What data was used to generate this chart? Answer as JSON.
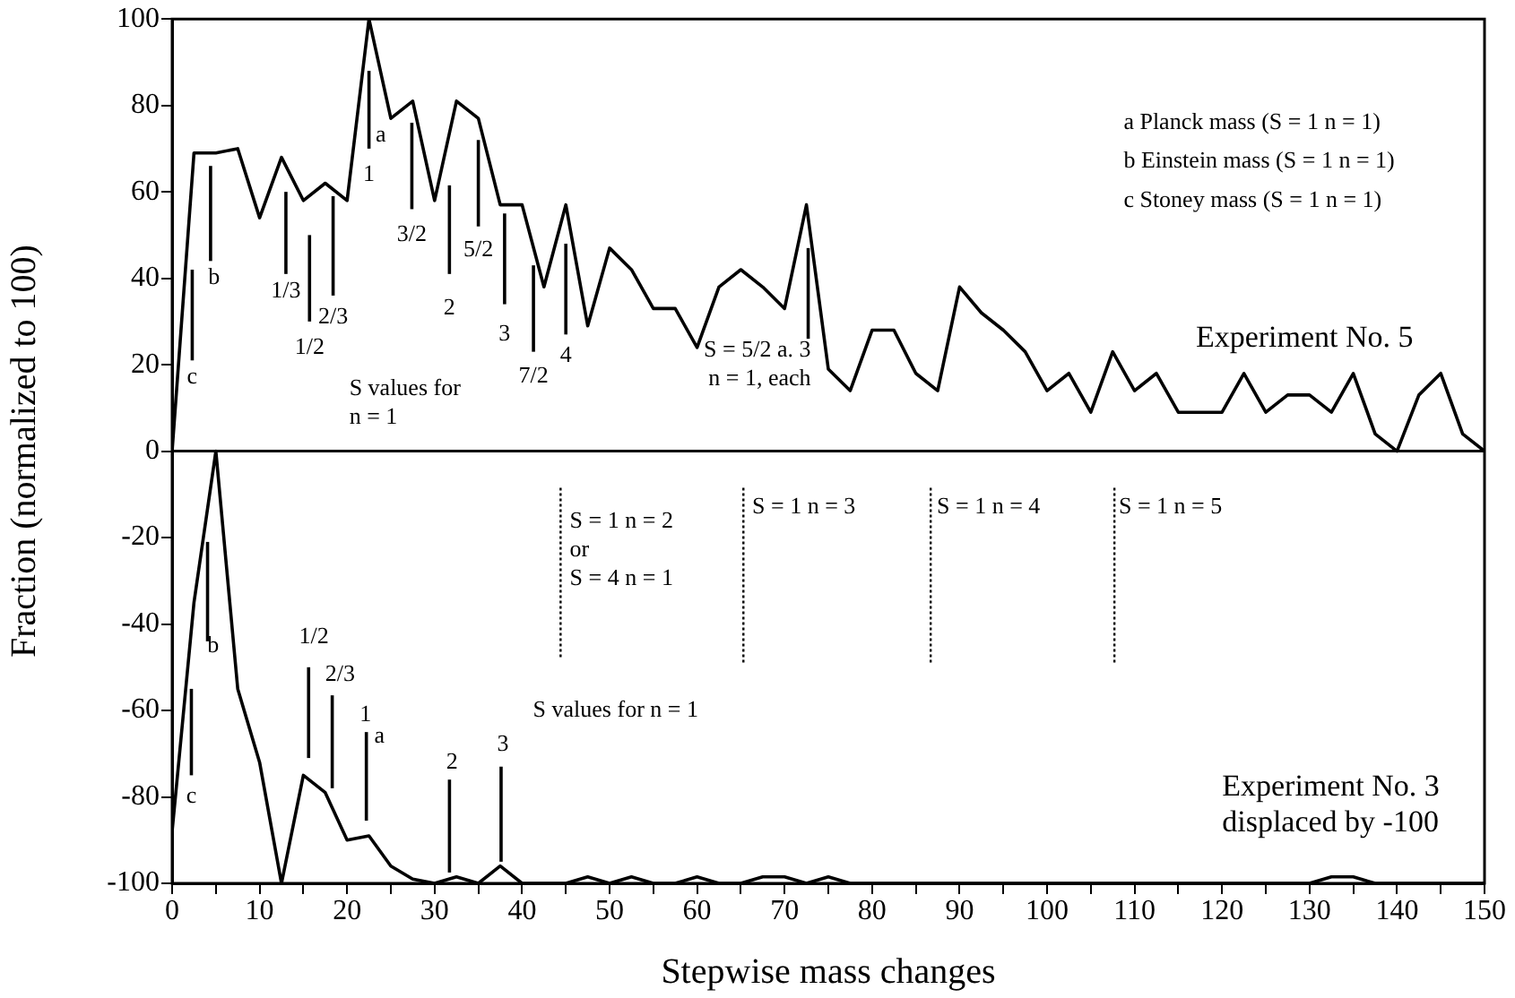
{
  "chart_data": {
    "type": "line",
    "xlabel": "Stepwise mass changes",
    "ylabel": "Fraction (normalized to 100)",
    "xlim": [
      0,
      150
    ],
    "ylim": [
      -100,
      100
    ],
    "xticks": [
      0,
      {
        "value": 5,
        "label": null
      },
      10,
      {
        "value": 15,
        "label": null
      },
      20,
      {
        "value": 25,
        "label": null
      },
      30,
      {
        "value": 35,
        "label": null
      },
      40,
      {
        "value": 45,
        "label": null
      },
      50,
      {
        "value": 55,
        "label": null
      },
      60,
      {
        "value": 65,
        "label": null
      },
      70,
      {
        "value": 75,
        "label": null
      },
      80,
      {
        "value": 85,
        "label": null
      },
      90,
      {
        "value": 95,
        "label": null
      },
      100,
      {
        "value": 105,
        "label": null
      },
      110,
      {
        "value": 115,
        "label": null
      },
      120,
      {
        "value": 125,
        "label": null
      },
      130,
      {
        "value": 135,
        "label": null
      },
      140,
      {
        "value": 145,
        "label": null
      },
      150
    ],
    "yticks": [
      -100,
      -80,
      -60,
      -40,
      -20,
      0,
      20,
      40,
      60,
      80,
      100
    ],
    "grid": false,
    "legend": false,
    "marker": "none",
    "line_style": "solid",
    "x": [
      0,
      2.5,
      5,
      7.5,
      10,
      12.5,
      15,
      17.5,
      20,
      22.5,
      25,
      27.5,
      30,
      32.5,
      35,
      37.5,
      40,
      42.5,
      45,
      47.5,
      50,
      52.5,
      55,
      57.5,
      60,
      62.5,
      65,
      67.5,
      70,
      72.5,
      75,
      77.5,
      80,
      82.5,
      85,
      87.5,
      90,
      92.5,
      95,
      97.5,
      100,
      102.5,
      105,
      107.5,
      110,
      112.5,
      115,
      117.5,
      120,
      122.5,
      125,
      127.5,
      130,
      132.5,
      135,
      137.5,
      140,
      142.5,
      145,
      147.5,
      150
    ],
    "series": [
      {
        "name": "Experiment No. 5",
        "color": "#000000",
        "values": [
          0,
          69,
          69,
          70,
          54,
          68,
          58,
          62,
          58,
          100,
          77,
          81,
          58,
          81,
          77,
          57,
          57,
          38,
          57,
          29,
          47,
          42,
          33,
          33,
          24,
          38,
          42,
          38,
          33,
          57,
          19,
          14,
          28,
          28,
          18,
          14,
          38,
          32,
          28,
          23,
          14,
          18,
          9,
          23,
          14,
          18,
          9,
          9,
          9,
          18,
          9,
          13,
          13,
          9,
          18,
          4,
          0,
          13,
          18,
          4,
          0
        ]
      },
      {
        "name": "Experiment No. 3\ndisplaced by -100",
        "color": "#000000",
        "values": [
          -88,
          -35,
          0,
          -55,
          -72,
          -100,
          -75,
          -79,
          -90,
          -89,
          -96,
          -99,
          -100,
          -98.5,
          -100,
          -96,
          -100,
          -100,
          -100,
          -98.5,
          -100,
          -98.5,
          -100,
          -100,
          -98.5,
          -100,
          -100,
          -98.5,
          -98.5,
          -100,
          -98.5,
          -100,
          -100,
          -100,
          -100,
          -100,
          -100,
          -100,
          -100,
          -100,
          -100,
          -100,
          -100,
          -100,
          -100,
          -100,
          -100,
          -100,
          -100,
          -100,
          -100,
          -100,
          -100,
          -98.5,
          -98.5,
          -100,
          -100,
          -100,
          -100,
          -100,
          -100
        ]
      }
    ],
    "ref_lines": [
      {
        "axis": "y",
        "value": 0,
        "label": null
      }
    ],
    "annotations": [
      "a Planck mass (S = 1 n = 1)",
      "b Einstein mass (S = 1 n = 1)",
      "c Stoney mass (S = 1 n = 1)",
      "S values for\nn = 1",
      "S values for n = 1",
      {
        "text": "c",
        "x": 2.3,
        "y": 42
      },
      "b",
      "1/3",
      "1/2",
      {
        "text": "2/3",
        "x": 18.4,
        "y": 59
      },
      {
        "text": "1",
        "x": 22.5,
        "y": 88
      },
      "a",
      {
        "text": "3/2",
        "x": 27.4,
        "y": 76
      },
      "2",
      {
        "text": "5/2",
        "x": 35,
        "y": 72
      },
      {
        "text": "3",
        "x": 38,
        "y": 55
      },
      {
        "text": "7/2",
        "x": 41.3,
        "y": 43
      },
      {
        "text": "4",
        "x": 45,
        "y": 48
      },
      {
        "text": "S = 5/2 a. 3\nn = 1, each",
        "x": 72.7,
        "y": 47
      },
      {
        "text": "c",
        "x": 2.2,
        "y": -55
      },
      {
        "text": "b",
        "x": 4.05,
        "y": -21
      },
      "1/2",
      {
        "text": "2/3",
        "x": 18.3,
        "y": -78
      },
      "1",
      "a",
      {
        "text": "2",
        "x": 31.7,
        "y": -97.5
      },
      {
        "text": "3",
        "x": 37.6,
        "y": -95
      },
      "S = 1 n = 2\nor\nS = 4 n = 1",
      "S = 1 n = 3",
      "S = 1 n = 4",
      "S = 1 n = 5"
    ]
  }
}
